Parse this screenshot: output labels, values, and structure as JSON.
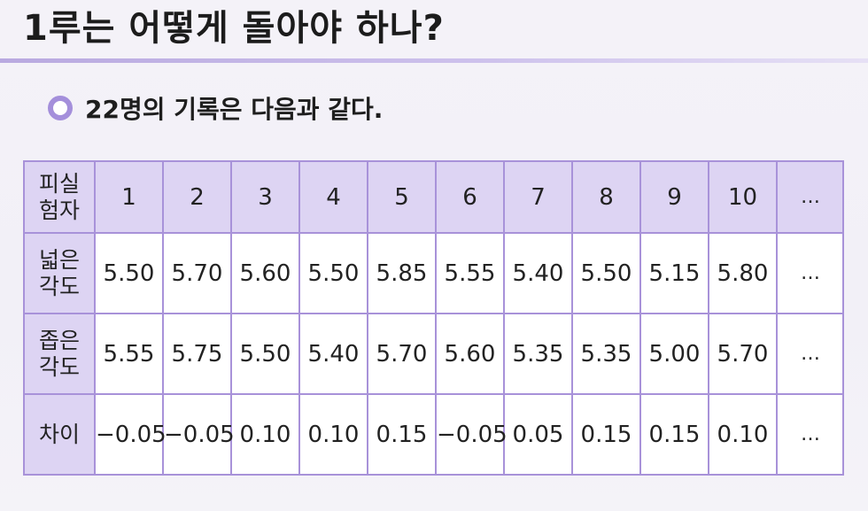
{
  "title": "1루는 어떻게 돌아야 하나?",
  "subtitle": "22명의 기록은 다음과 같다.",
  "table": {
    "header_label": [
      "피실",
      "험자"
    ],
    "header": [
      "1",
      "2",
      "3",
      "4",
      "5",
      "6",
      "7",
      "8",
      "9",
      "10",
      "…"
    ],
    "rows": [
      {
        "label": [
          "넓은",
          "각도"
        ],
        "values": [
          "5.50",
          "5.70",
          "5.60",
          "5.50",
          "5.85",
          "5.55",
          "5.40",
          "5.50",
          "5.15",
          "5.80",
          "…"
        ]
      },
      {
        "label": [
          "좁은",
          "각도"
        ],
        "values": [
          "5.55",
          "5.75",
          "5.50",
          "5.40",
          "5.70",
          "5.60",
          "5.35",
          "5.35",
          "5.00",
          "5.70",
          "…"
        ]
      },
      {
        "label": [
          "차이"
        ],
        "values": [
          "−0.05",
          "−0.05",
          "0.10",
          "0.10",
          "0.15",
          "−0.05",
          "0.05",
          "0.15",
          "0.15",
          "0.10",
          "…"
        ]
      }
    ]
  }
}
